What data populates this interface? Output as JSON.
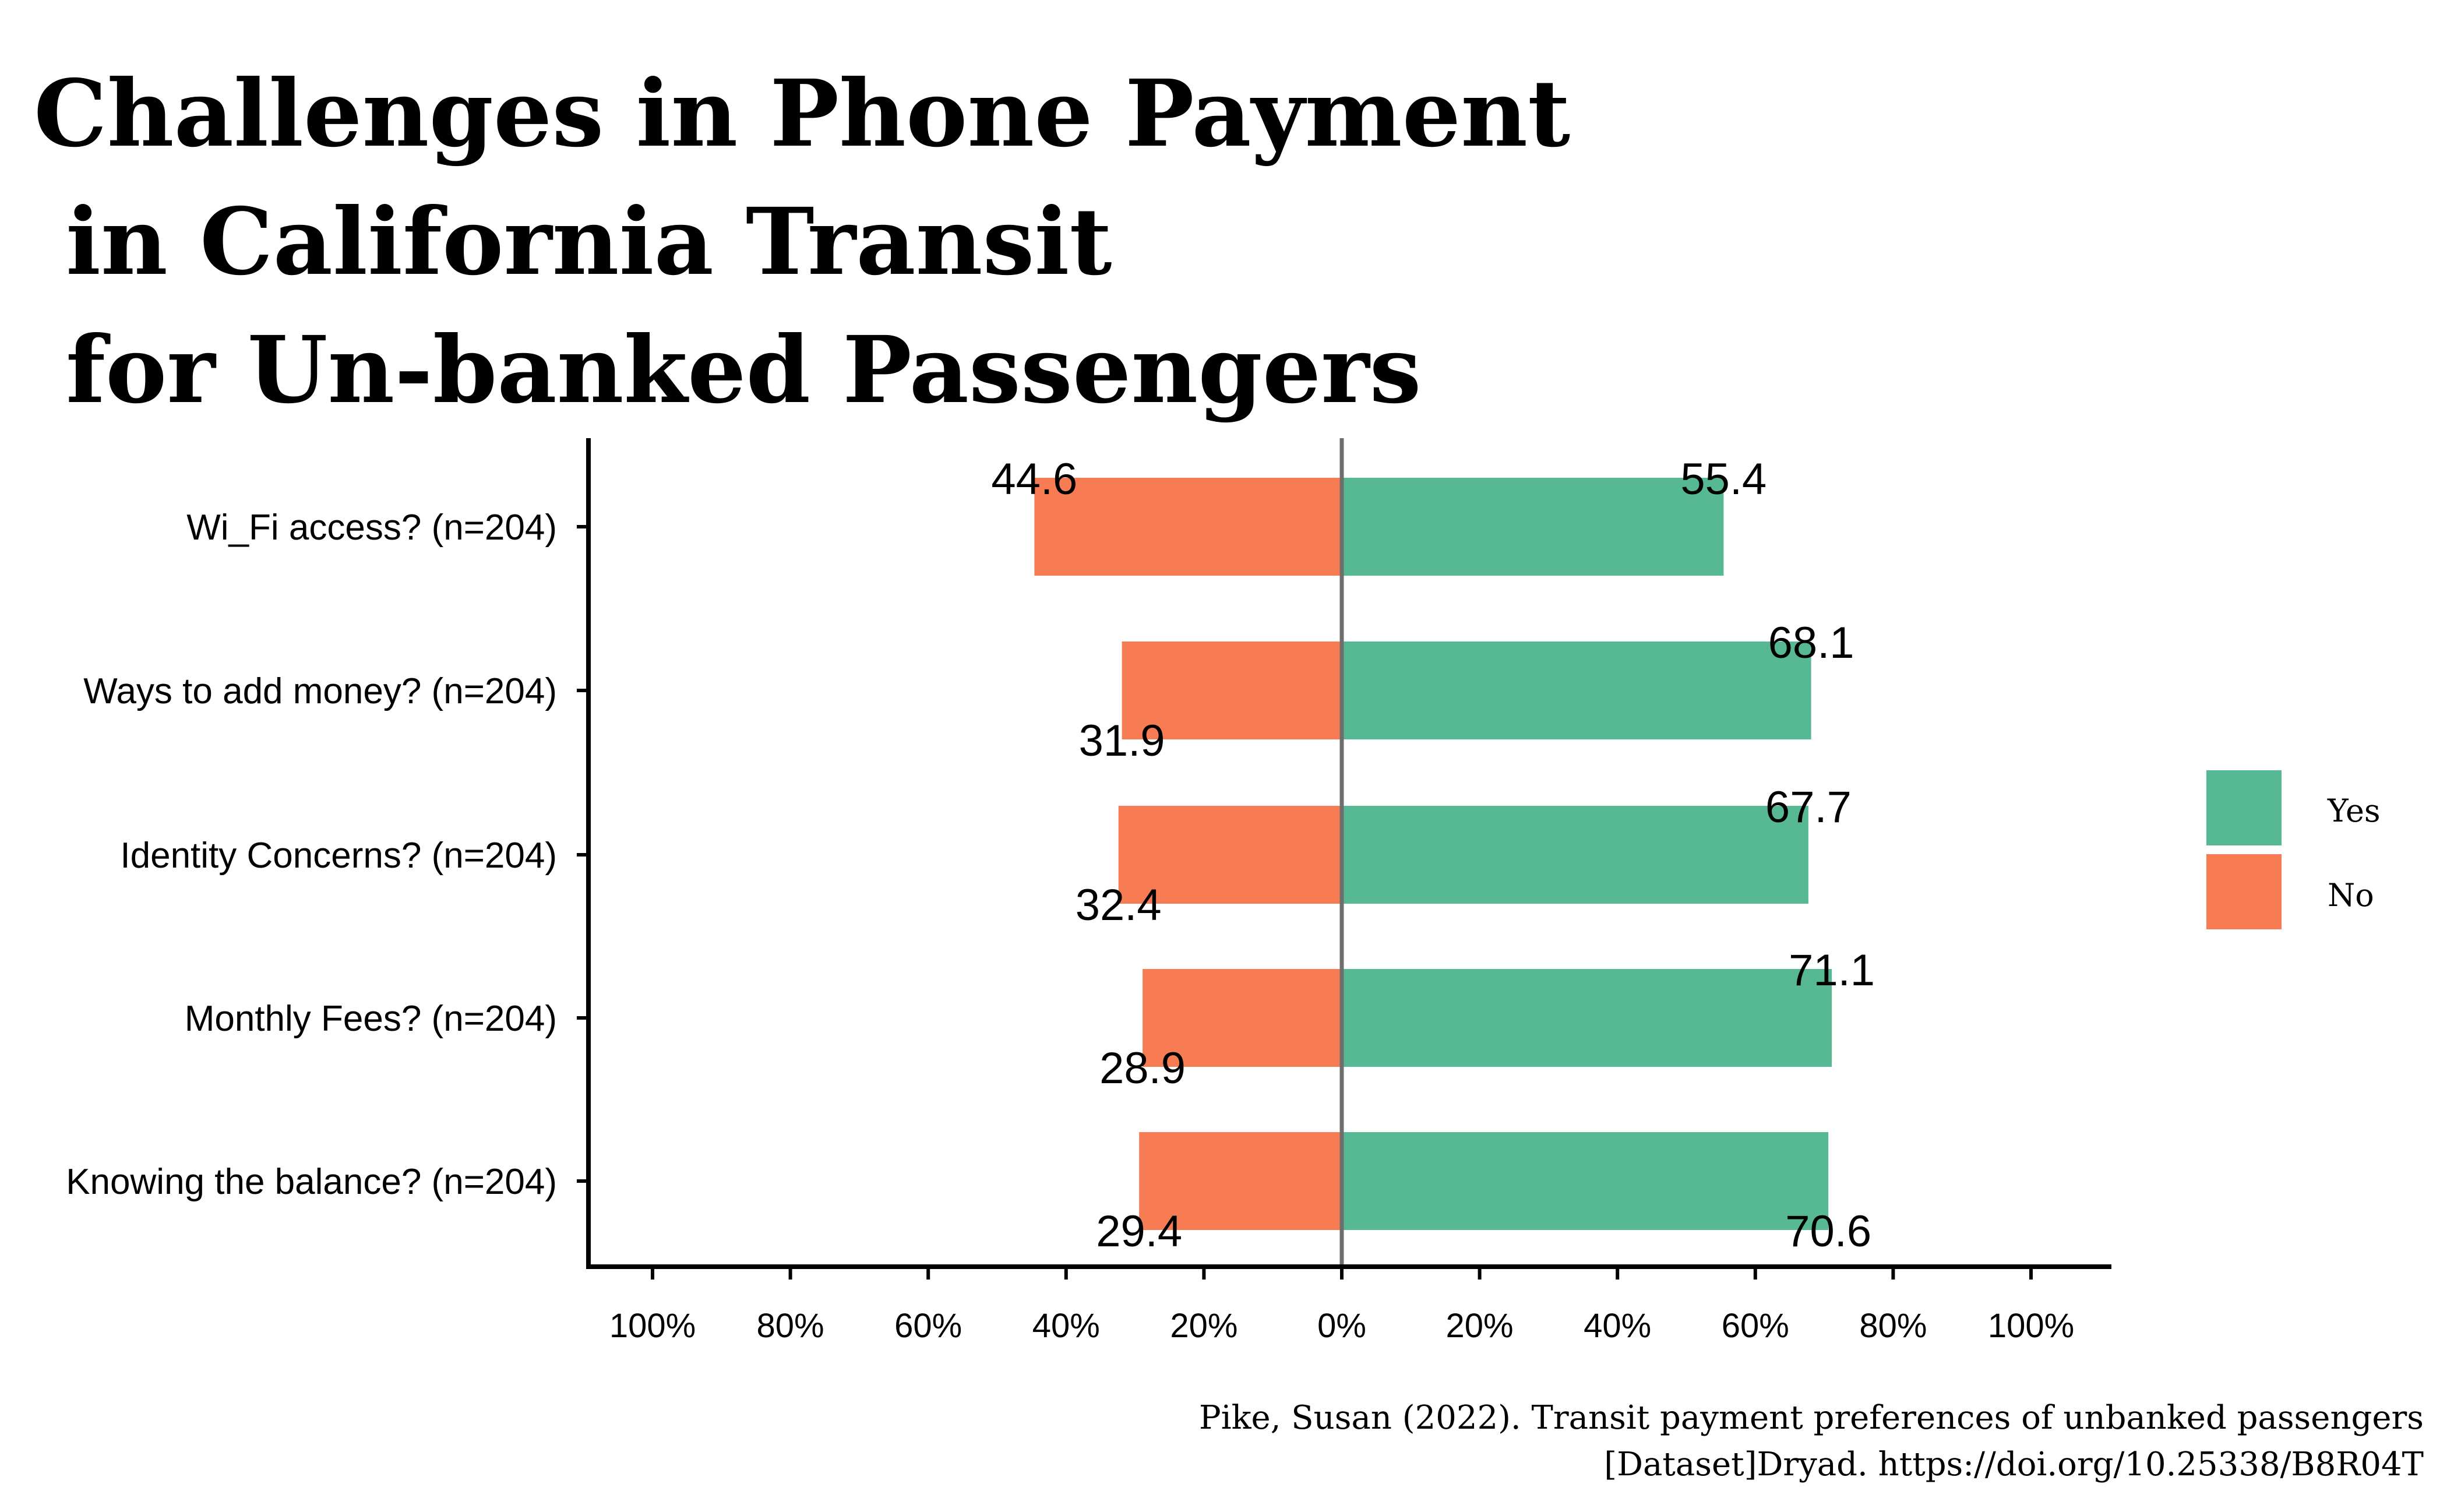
{
  "chart_data": {
    "type": "bar",
    "orientation": "horizontal-diverging",
    "title_lines": [
      "Challenges in Phone Payment",
      " in California Transit",
      " for Un-banked Passengers"
    ],
    "categories": [
      "Wi_Fi access? (n=204)",
      "Ways to add money? (n=204)",
      "Identity Concerns? (n=204)",
      "Monthly Fees? (n=204)",
      "Knowing the balance? (n=204)"
    ],
    "series": [
      {
        "name": "Yes",
        "color": "#57b994",
        "direction": "right",
        "values": [
          55.4,
          68.1,
          67.7,
          71.1,
          70.6
        ],
        "labels": [
          "55.4",
          "68.1",
          "67.7",
          "71.1",
          "70.6"
        ],
        "label_side": [
          "above",
          "above",
          "above",
          "above",
          "below"
        ]
      },
      {
        "name": "No",
        "color": "#f77b53",
        "direction": "left",
        "values": [
          44.6,
          31.9,
          32.4,
          28.9,
          29.4
        ],
        "labels": [
          "44.6",
          "31.9",
          "32.4",
          "28.9",
          "29.4"
        ],
        "label_side": [
          "above",
          "below",
          "below",
          "below",
          "below"
        ]
      }
    ],
    "xlim": [
      -110,
      110
    ],
    "x_ticks": [
      -100,
      -80,
      -60,
      -40,
      -20,
      0,
      20,
      40,
      60,
      80,
      100
    ],
    "x_tick_labels": [
      "100%",
      "80%",
      "60%",
      "40%",
      "20%",
      "0%",
      "20%",
      "40%",
      "60%",
      "80%",
      "100%"
    ],
    "xlabel": "",
    "ylabel": "",
    "grid": false,
    "legend": {
      "placement": "right",
      "entries": [
        "Yes",
        "No"
      ]
    },
    "caption_lines": [
      "Pike, Susan (2022). Transit payment preferences of unbanked passengers",
      "[Dataset]Dryad. https://doi.org/10.25338/B8R04T"
    ]
  }
}
